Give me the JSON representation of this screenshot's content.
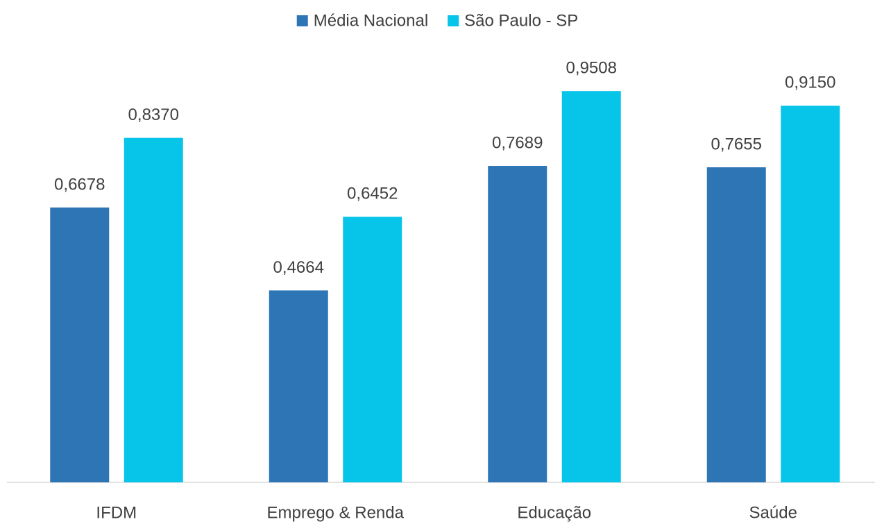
{
  "chart_data": {
    "type": "bar",
    "categories": [
      "IFDM",
      "Emprego & Renda",
      "Educação",
      "Saúde"
    ],
    "series": [
      {
        "name": "Média Nacional",
        "color": "#2e75b6",
        "values": [
          0.6678,
          0.4664,
          0.7689,
          0.7655
        ],
        "value_labels": [
          "0,6678",
          "0,4664",
          "0,7689",
          "0,7655"
        ]
      },
      {
        "name": "São Paulo - SP",
        "color": "#07c4e9",
        "values": [
          0.837,
          0.6452,
          0.9508,
          0.915
        ],
        "value_labels": [
          "0,8370",
          "0,6452",
          "0,9508",
          "0,9150"
        ]
      }
    ],
    "legend": "top"
  }
}
